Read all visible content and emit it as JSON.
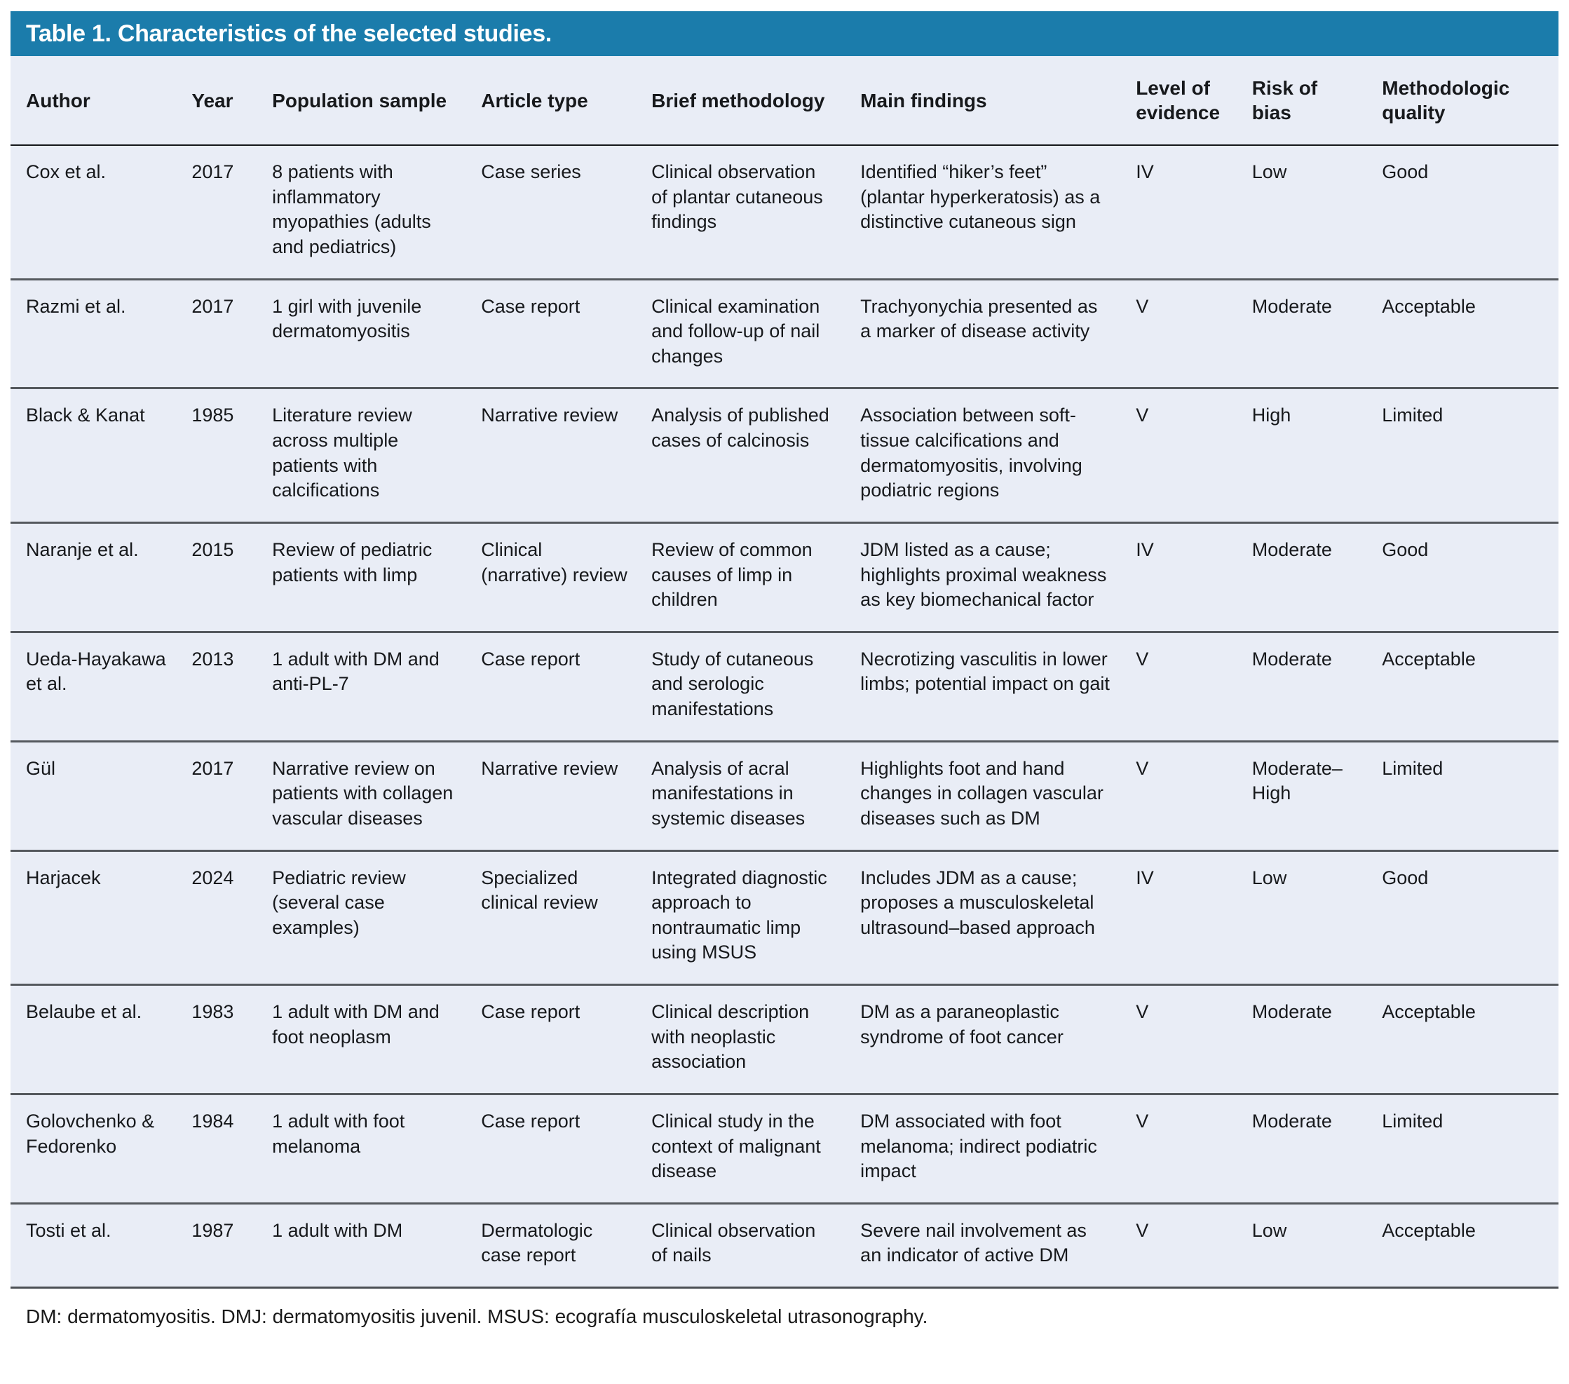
{
  "title": "Table 1. Characteristics of the selected studies.",
  "colors": {
    "title_bar_bg": "#1b7cab",
    "title_text": "#ffffff",
    "table_bg": "#e9edf6",
    "row_divider": "#55595e"
  },
  "table": {
    "columns": [
      {
        "key": "author",
        "label": "Author"
      },
      {
        "key": "year",
        "label": "Year"
      },
      {
        "key": "population",
        "label": "Population sample"
      },
      {
        "key": "article_type",
        "label": "Article type"
      },
      {
        "key": "methodology",
        "label": "Brief methodology"
      },
      {
        "key": "findings",
        "label": "Main findings"
      },
      {
        "key": "evidence",
        "label": "Level of evidence"
      },
      {
        "key": "bias",
        "label": "Risk of bias"
      },
      {
        "key": "quality",
        "label": "Methodologic quality"
      }
    ],
    "rows": [
      {
        "author": "Cox et al.",
        "year": "2017",
        "population": "8 patients with inflammatory myopathies (adults and pediatrics)",
        "article_type": "Case series",
        "methodology": "Clinical observation of plantar cutaneous findings",
        "findings": "Identified “hiker’s feet” (plantar hyperkeratosis) as a distinctive cutaneous sign",
        "evidence": "IV",
        "bias": "Low",
        "quality": "Good"
      },
      {
        "author": "Razmi et al.",
        "year": "2017",
        "population": "1 girl with juvenile dermatomyositis",
        "article_type": "Case report",
        "methodology": "Clinical examination and follow-up of nail changes",
        "findings": "Trachyonychia presented as a marker of disease activity",
        "evidence": "V",
        "bias": "Moderate",
        "quality": "Acceptable"
      },
      {
        "author": "Black & Kanat",
        "year": "1985",
        "population": "Literature review across multiple patients with calcifications",
        "article_type": "Narrative review",
        "methodology": "Analysis of published cases of calcinosis",
        "findings": "Association between soft-tissue calcifications and dermatomyositis, involving podiatric regions",
        "evidence": "V",
        "bias": "High",
        "quality": "Limited"
      },
      {
        "author": "Naranje et al.",
        "year": "2015",
        "population": "Review of pediatric patients with limp",
        "article_type": "Clinical (narrative) review",
        "methodology": "Review of common causes of limp in children",
        "findings": "JDM listed as a cause; highlights proximal weakness as key biomechanical factor",
        "evidence": "IV",
        "bias": "Moderate",
        "quality": "Good"
      },
      {
        "author": "Ueda-Hayakawa et al.",
        "year": "2013",
        "population": "1 adult with DM and anti-PL-7",
        "article_type": "Case report",
        "methodology": "Study of cutaneous and serologic manifestations",
        "findings": "Necrotizing vasculitis in lower limbs; potential impact on gait",
        "evidence": "V",
        "bias": "Moderate",
        "quality": "Acceptable"
      },
      {
        "author": "Gül",
        "year": "2017",
        "population": "Narrative review on patients with collagen vascular diseases",
        "article_type": "Narrative review",
        "methodology": "Analysis of acral manifestations in systemic diseases",
        "findings": "Highlights foot and hand changes in collagen vascular diseases such as DM",
        "evidence": "V",
        "bias": "Moderate–High",
        "quality": "Limited"
      },
      {
        "author": "Harjacek",
        "year": "2024",
        "population": "Pediatric review (several case examples)",
        "article_type": "Specialized clinical review",
        "methodology": "Integrated diagnostic approach to nontraumatic limp using MSUS",
        "findings": "Includes JDM as a cause; proposes a musculoskeletal ultrasound–based approach",
        "evidence": "IV",
        "bias": "Low",
        "quality": "Good"
      },
      {
        "author": "Belaube et al.",
        "year": "1983",
        "population": "1 adult with DM and foot neoplasm",
        "article_type": "Case report",
        "methodology": "Clinical description with neoplastic association",
        "findings": "DM as a paraneoplastic syndrome of foot cancer",
        "evidence": "V",
        "bias": "Moderate",
        "quality": "Acceptable"
      },
      {
        "author": "Golovchenko & Fedorenko",
        "year": "1984",
        "population": "1 adult with foot melanoma",
        "article_type": "Case report",
        "methodology": "Clinical study in the context of malignant disease",
        "findings": "DM associated with foot melanoma; indirect podiatric impact",
        "evidence": "V",
        "bias": "Moderate",
        "quality": "Limited"
      },
      {
        "author": "Tosti et al.",
        "year": "1987",
        "population": "1 adult with DM",
        "article_type": "Dermatologic case report",
        "methodology": "Clinical observation of nails",
        "findings": "Severe nail involvement as an indicator of active DM",
        "evidence": "V",
        "bias": "Low",
        "quality": "Acceptable"
      }
    ]
  },
  "footnote": "DM: dermatomyositis. DMJ: dermatomyositis juvenil. MSUS: ecografía musculoskeletal utrasonography."
}
